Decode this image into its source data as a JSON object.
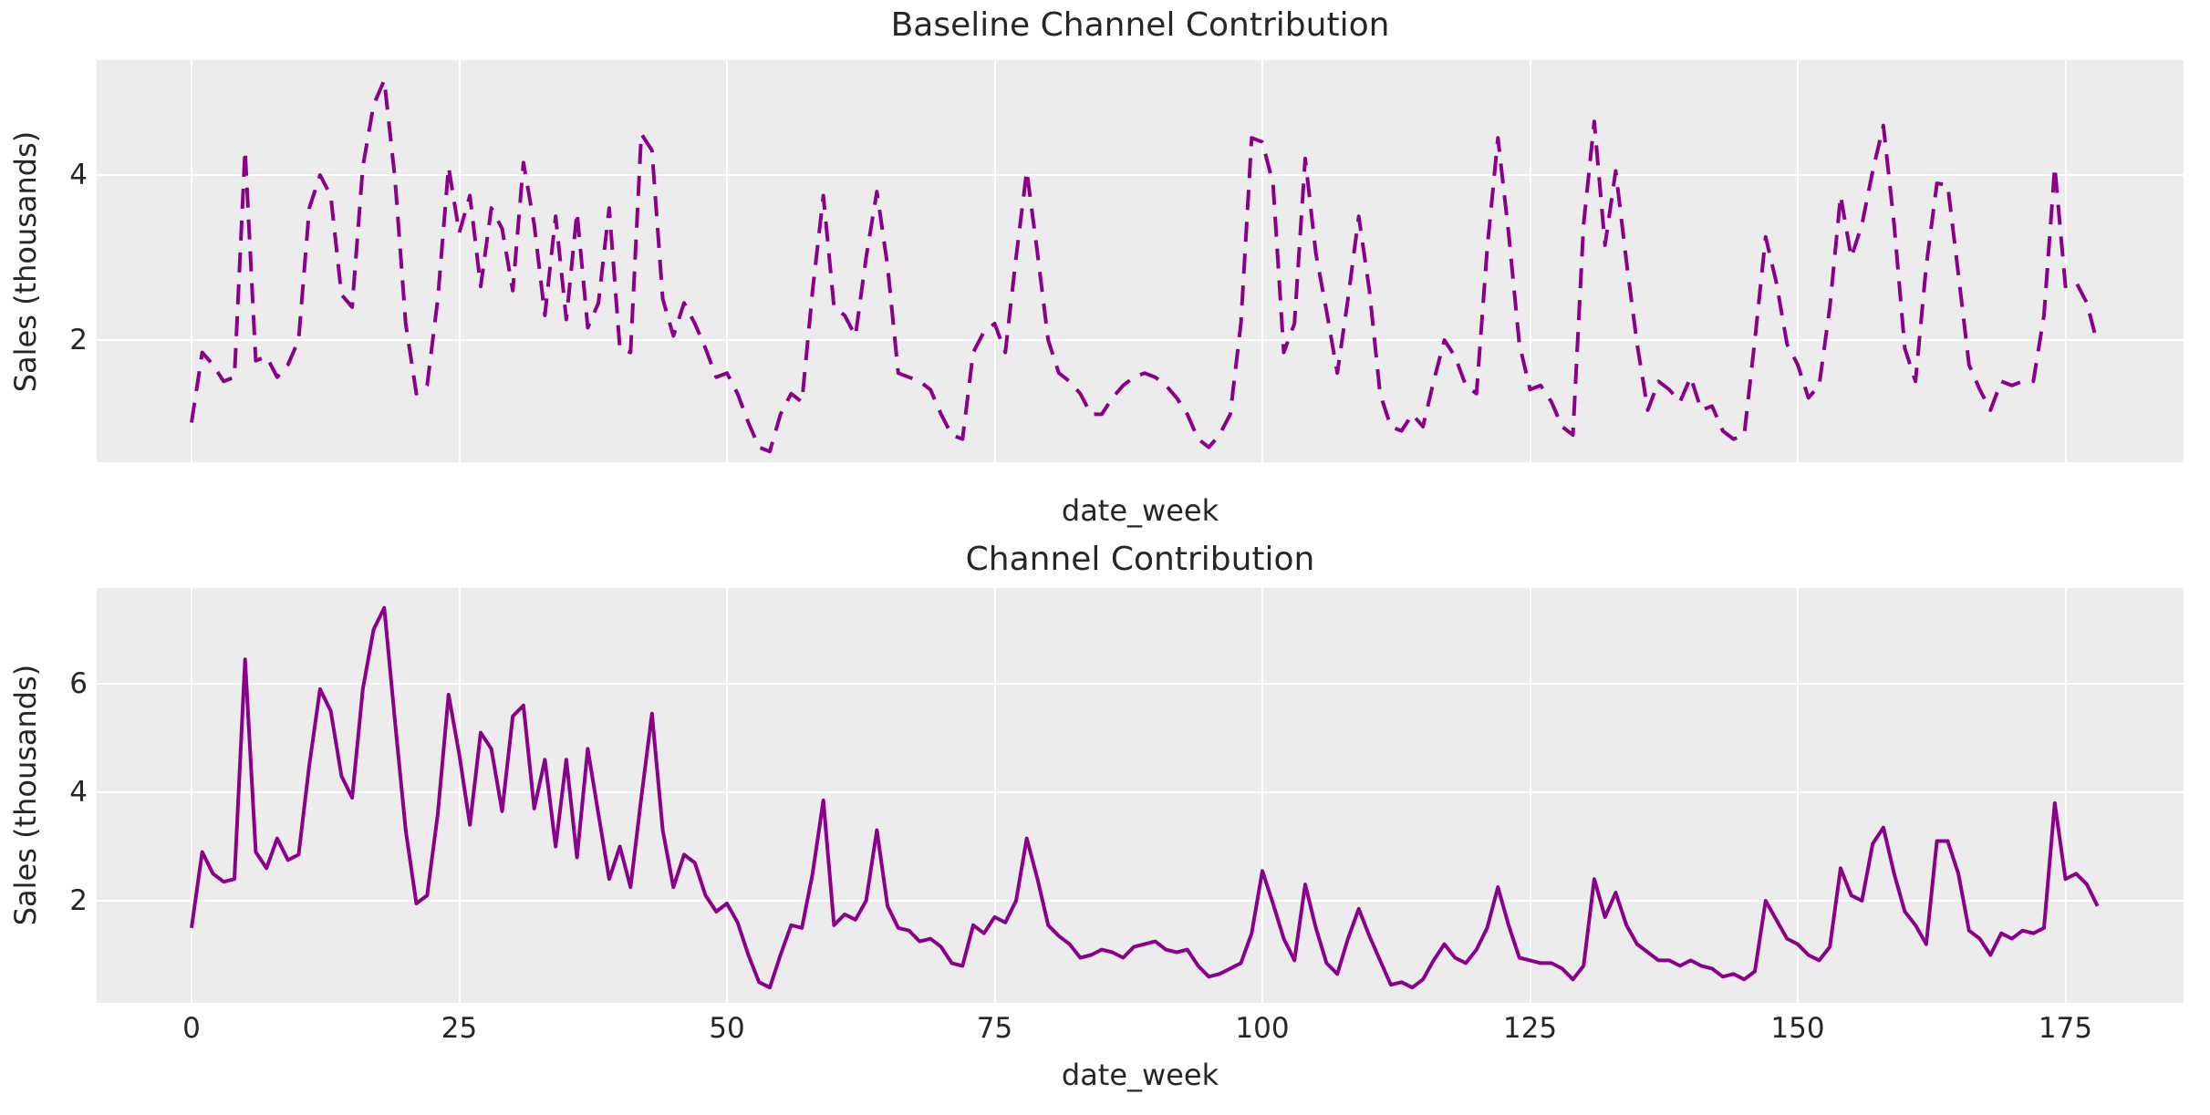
{
  "colors": {
    "figure_bg": "#ffffff",
    "plot_bg": "#ececec",
    "grid": "#ffffff",
    "line": "#8b008b",
    "text": "#262626"
  },
  "chart_data": [
    {
      "type": "line",
      "title": "Baseline Channel Contribution",
      "xlabel": "date_week",
      "ylabel": "Sales (thousands)",
      "legend": null,
      "grid": true,
      "line_style": "dashed",
      "line_color": "#8b008b",
      "xlim": [
        -8.9,
        186.1
      ],
      "ylim": [
        0.52,
        5.39
      ],
      "xticks": [
        0,
        25,
        50,
        75,
        100,
        125,
        150,
        175
      ],
      "xtick_labels_visible": false,
      "yticks": [
        2,
        4
      ],
      "x_start": 0,
      "x_step": 1,
      "x_name": "week index",
      "values": [
        1.0,
        1.85,
        1.7,
        1.5,
        1.55,
        4.3,
        1.75,
        1.8,
        1.55,
        1.7,
        2.0,
        3.6,
        4.0,
        3.75,
        2.55,
        2.4,
        4.1,
        4.85,
        5.15,
        3.95,
        2.2,
        1.35,
        1.45,
        2.5,
        4.1,
        3.3,
        3.75,
        2.65,
        3.6,
        3.35,
        2.6,
        4.15,
        3.4,
        2.3,
        3.5,
        2.25,
        3.55,
        2.15,
        2.45,
        3.6,
        1.9,
        1.85,
        4.5,
        4.3,
        2.5,
        2.05,
        2.45,
        2.2,
        1.9,
        1.55,
        1.6,
        1.35,
        1.0,
        0.7,
        0.65,
        1.1,
        1.35,
        1.25,
        2.6,
        3.75,
        2.4,
        2.3,
        2.05,
        3.0,
        3.8,
        2.9,
        1.6,
        1.55,
        1.5,
        1.4,
        1.1,
        0.85,
        0.8,
        1.85,
        2.1,
        2.2,
        1.85,
        3.0,
        4.05,
        3.05,
        2.0,
        1.6,
        1.5,
        1.35,
        1.1,
        1.1,
        1.3,
        1.45,
        1.55,
        1.6,
        1.55,
        1.45,
        1.3,
        1.1,
        0.8,
        0.7,
        0.85,
        1.1,
        2.2,
        4.45,
        4.4,
        3.9,
        1.85,
        2.2,
        4.2,
        3.05,
        2.35,
        1.6,
        2.5,
        3.5,
        2.6,
        1.35,
        0.95,
        0.9,
        1.1,
        0.95,
        1.5,
        2.0,
        1.8,
        1.45,
        1.35,
        3.1,
        4.45,
        3.3,
        1.95,
        1.4,
        1.45,
        1.25,
        0.95,
        0.85,
        3.4,
        4.65,
        3.15,
        4.05,
        2.95,
        1.95,
        1.15,
        1.5,
        1.4,
        1.25,
        1.55,
        1.15,
        1.2,
        0.9,
        0.8,
        0.85,
        2.0,
        3.25,
        2.7,
        1.95,
        1.7,
        1.3,
        1.45,
        2.4,
        3.75,
        3.0,
        3.4,
        4.05,
        4.6,
        3.4,
        1.9,
        1.5,
        2.9,
        3.9,
        3.88,
        2.8,
        1.7,
        1.4,
        1.15,
        1.5,
        1.45,
        1.5,
        1.5,
        2.3,
        4.1,
        2.65,
        2.7,
        2.45,
        1.95
      ]
    },
    {
      "type": "line",
      "title": "Channel Contribution",
      "xlabel": "date_week",
      "ylabel": "Sales (thousands)",
      "legend": null,
      "grid": true,
      "line_style": "solid",
      "line_color": "#8b008b",
      "xlim": [
        -8.9,
        186.1
      ],
      "ylim": [
        0.12,
        7.76
      ],
      "xticks": [
        0,
        25,
        50,
        75,
        100,
        125,
        150,
        175
      ],
      "xtick_labels_visible": true,
      "yticks": [
        2,
        4,
        6
      ],
      "x_start": 0,
      "x_step": 1,
      "x_name": "week index",
      "values": [
        1.5,
        2.9,
        2.5,
        2.35,
        2.4,
        6.45,
        2.9,
        2.6,
        3.15,
        2.75,
        2.85,
        4.5,
        5.9,
        5.5,
        4.3,
        3.9,
        5.9,
        7.0,
        7.4,
        5.3,
        3.3,
        1.95,
        2.1,
        3.6,
        5.8,
        4.7,
        3.4,
        5.1,
        4.8,
        3.65,
        5.4,
        5.6,
        3.7,
        4.6,
        3.0,
        4.6,
        2.8,
        4.8,
        3.6,
        2.4,
        3.0,
        2.25,
        3.9,
        5.45,
        3.3,
        2.25,
        2.85,
        2.7,
        2.1,
        1.8,
        1.95,
        1.6,
        1.0,
        0.5,
        0.4,
        1.0,
        1.55,
        1.5,
        2.5,
        3.85,
        1.55,
        1.75,
        1.65,
        2.0,
        3.3,
        1.9,
        1.5,
        1.45,
        1.25,
        1.3,
        1.15,
        0.85,
        0.8,
        1.55,
        1.4,
        1.7,
        1.6,
        2.0,
        3.15,
        2.4,
        1.55,
        1.35,
        1.2,
        0.95,
        1.0,
        1.1,
        1.05,
        0.95,
        1.15,
        1.2,
        1.25,
        1.1,
        1.05,
        1.1,
        0.8,
        0.6,
        0.65,
        0.75,
        0.85,
        1.4,
        2.55,
        1.95,
        1.3,
        0.9,
        2.3,
        1.5,
        0.85,
        0.65,
        1.3,
        1.85,
        1.35,
        0.9,
        0.45,
        0.5,
        0.4,
        0.55,
        0.9,
        1.2,
        0.95,
        0.85,
        1.1,
        1.5,
        2.25,
        1.55,
        0.95,
        0.9,
        0.85,
        0.85,
        0.75,
        0.55,
        0.8,
        2.4,
        1.7,
        2.15,
        1.55,
        1.2,
        1.05,
        0.9,
        0.9,
        0.8,
        0.9,
        0.8,
        0.75,
        0.6,
        0.65,
        0.55,
        0.7,
        2.0,
        1.65,
        1.3,
        1.2,
        1.0,
        0.9,
        1.15,
        2.6,
        2.1,
        2.0,
        3.05,
        3.35,
        2.5,
        1.8,
        1.55,
        1.2,
        3.1,
        3.1,
        2.5,
        1.45,
        1.3,
        1.0,
        1.4,
        1.3,
        1.45,
        1.4,
        1.5,
        3.8,
        2.4,
        2.5,
        2.3,
        1.9
      ]
    }
  ]
}
